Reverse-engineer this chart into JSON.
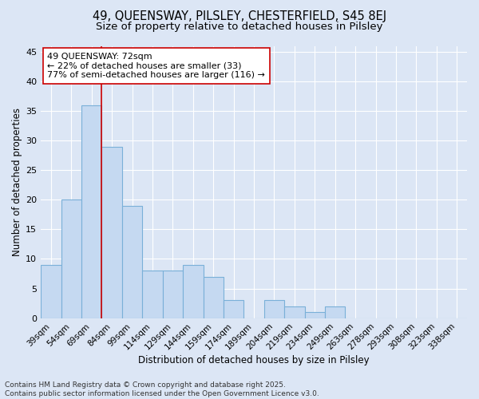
{
  "title1": "49, QUEENSWAY, PILSLEY, CHESTERFIELD, S45 8EJ",
  "title2": "Size of property relative to detached houses in Pilsley",
  "xlabel": "Distribution of detached houses by size in Pilsley",
  "ylabel": "Number of detached properties",
  "bin_labels": [
    "39sqm",
    "54sqm",
    "69sqm",
    "84sqm",
    "99sqm",
    "114sqm",
    "129sqm",
    "144sqm",
    "159sqm",
    "174sqm",
    "189sqm",
    "204sqm",
    "219sqm",
    "234sqm",
    "249sqm",
    "263sqm",
    "278sqm",
    "293sqm",
    "308sqm",
    "323sqm",
    "338sqm"
  ],
  "bar_values": [
    9,
    20,
    36,
    29,
    19,
    8,
    8,
    9,
    7,
    3,
    0,
    3,
    2,
    1,
    2,
    0,
    0,
    0,
    0,
    0,
    0
  ],
  "bar_color": "#c5d9f1",
  "bar_edge_color": "#7ab0d8",
  "bar_linewidth": 0.8,
  "vline_x": 2.5,
  "vline_color": "#cc0000",
  "annotation_text": "49 QUEENSWAY: 72sqm\n← 22% of detached houses are smaller (33)\n77% of semi-detached houses are larger (116) →",
  "annotation_box_color": "#ffffff",
  "annotation_box_edge": "#cc0000",
  "ylim": [
    0,
    46
  ],
  "yticks": [
    0,
    5,
    10,
    15,
    20,
    25,
    30,
    35,
    40,
    45
  ],
  "background_color": "#dce6f5",
  "plot_bg_color": "#dce6f5",
  "footer_text": "Contains HM Land Registry data © Crown copyright and database right 2025.\nContains public sector information licensed under the Open Government Licence v3.0.",
  "grid_color": "#ffffff",
  "title1_fontsize": 10.5,
  "title2_fontsize": 9.5,
  "xlabel_fontsize": 8.5,
  "ylabel_fontsize": 8.5,
  "annotation_fontsize": 8,
  "footer_fontsize": 6.5,
  "tick_fontsize": 8,
  "xtick_fontsize": 7.5
}
